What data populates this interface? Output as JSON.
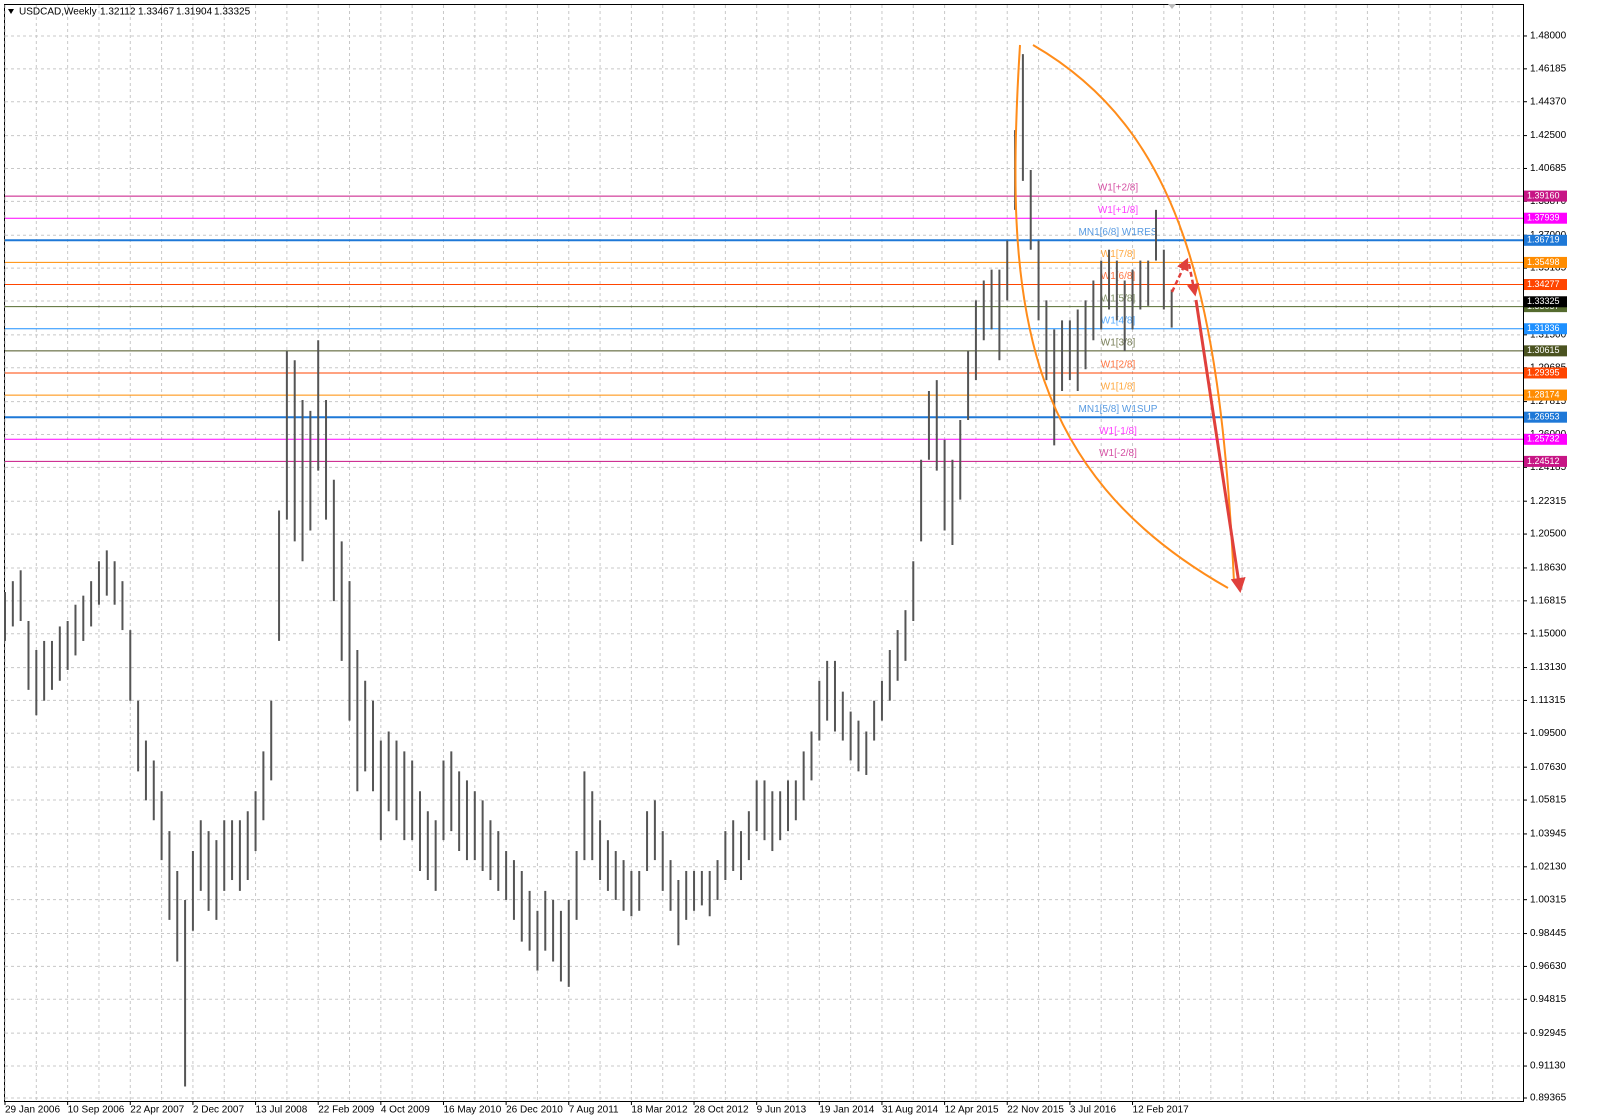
{
  "chart_data": {
    "type": "ohlc",
    "symbol": "USDCAD,Weekly",
    "header_values": [
      1.32112,
      1.33467,
      1.31904,
      1.33325
    ],
    "bar_color": "#555555",
    "grid": true,
    "ylim": [
      0.892,
      1.4971
    ],
    "yticks": [
      {
        "value": 1.48,
        "label": "1.48000"
      },
      1.46185,
      {
        "value": 1.4437,
        "label": "1.44370"
      },
      {
        "value": 1.425,
        "label": "1.42500"
      },
      1.40685,
      {
        "value": 1.3887,
        "label": "1.38870"
      },
      {
        "value": 1.37,
        "label": "1.37000"
      },
      1.35185,
      {
        "value": 1.3337,
        "label": "1.33370"
      },
      {
        "value": 1.315,
        "label": "1.31500"
      },
      1.29685,
      1.27815,
      {
        "value": 1.26,
        "label": "1.26000"
      },
      1.24185,
      1.22315,
      {
        "value": 1.205,
        "label": "1.20500"
      },
      {
        "value": 1.1863,
        "label": "1.18630"
      },
      1.16815,
      {
        "value": 1.15,
        "label": "1.15000"
      },
      {
        "value": 1.1313,
        "label": "1.13130"
      },
      1.11315,
      {
        "value": 1.095,
        "label": "1.09500"
      },
      {
        "value": 1.0763,
        "label": "1.07630"
      },
      1.05815,
      1.03945,
      {
        "value": 1.0213,
        "label": "1.02130"
      },
      1.00315,
      0.98445,
      {
        "value": 0.9663,
        "label": "0.96630"
      },
      0.94815,
      0.92945,
      {
        "value": 0.9113,
        "label": "0.91130"
      },
      0.89365
    ],
    "categories": [
      "29 Jan 2006",
      null,
      null,
      null,
      null,
      null,
      null,
      null,
      "10 Sep 2006",
      null,
      null,
      null,
      null,
      null,
      null,
      null,
      "22 Apr 2007",
      null,
      null,
      null,
      null,
      null,
      null,
      null,
      "2 Dec 2007",
      null,
      null,
      null,
      null,
      null,
      null,
      null,
      "13 Jul 2008",
      null,
      null,
      null,
      null,
      null,
      null,
      null,
      "22 Feb 2009",
      null,
      null,
      null,
      null,
      null,
      null,
      null,
      "4 Oct 2009",
      null,
      null,
      null,
      null,
      null,
      null,
      null,
      "16 May 2010",
      null,
      null,
      null,
      null,
      null,
      null,
      null,
      "26 Dec 2010",
      null,
      null,
      null,
      null,
      null,
      null,
      null,
      "7 Aug 2011",
      null,
      null,
      null,
      null,
      null,
      null,
      null,
      "18 Mar 2012",
      null,
      null,
      null,
      null,
      null,
      null,
      null,
      "28 Oct 2012",
      null,
      null,
      null,
      null,
      null,
      null,
      null,
      "9 Jun 2013",
      null,
      null,
      null,
      null,
      null,
      null,
      null,
      "19 Jan 2014",
      null,
      null,
      null,
      null,
      null,
      null,
      null,
      "31 Aug 2014",
      null,
      null,
      null,
      null,
      null,
      null,
      null,
      "12 Apr 2015",
      null,
      null,
      null,
      null,
      null,
      null,
      null,
      "22 Nov 2015",
      null,
      null,
      null,
      null,
      null,
      null,
      null,
      "3 Jul 2016",
      null,
      null,
      null,
      null,
      null,
      null,
      null,
      "12 Feb 2017",
      null,
      null,
      null,
      null,
      null
    ],
    "high": [
      1.173,
      1.179,
      1.185,
      1.157,
      1.141,
      1.146,
      1.146,
      1.154,
      1.157,
      1.166,
      1.171,
      1.179,
      1.19,
      1.196,
      1.19,
      1.179,
      1.152,
      1.113,
      1.091,
      1.08,
      1.063,
      1.041,
      1.019,
      1.003,
      1.03,
      1.047,
      1.041,
      1.036,
      1.047,
      1.047,
      1.047,
      1.052,
      1.063,
      1.085,
      1.113,
      1.218,
      1.306,
      1.301,
      1.279,
      1.273,
      1.312,
      1.279,
      1.235,
      1.201,
      1.179,
      1.141,
      1.124,
      1.113,
      1.091,
      1.096,
      1.091,
      1.085,
      1.08,
      1.063,
      1.052,
      1.047,
      1.08,
      1.085,
      1.074,
      1.069,
      1.063,
      1.058,
      1.047,
      1.041,
      1.03,
      1.025,
      1.019,
      1.008,
      0.997,
      1.008,
      1.003,
      0.997,
      1.003,
      1.03,
      1.074,
      1.063,
      1.047,
      1.036,
      1.03,
      1.025,
      1.019,
      1.019,
      1.052,
      1.058,
      1.041,
      1.025,
      1.014,
      1.019,
      1.019,
      1.019,
      1.019,
      1.025,
      1.041,
      1.047,
      1.041,
      1.052,
      1.069,
      1.069,
      1.063,
      1.063,
      1.069,
      1.069,
      1.085,
      1.096,
      1.124,
      1.135,
      1.135,
      1.118,
      1.107,
      1.102,
      1.096,
      1.113,
      1.124,
      1.141,
      1.152,
      1.163,
      1.19,
      1.246,
      1.284,
      1.29,
      1.257,
      1.246,
      1.268,
      1.306,
      1.334,
      1.345,
      1.351,
      1.351,
      1.367,
      1.428,
      1.47,
      1.406,
      1.367,
      1.334,
      1.318,
      1.323,
      1.323,
      1.329,
      1.334,
      1.345,
      1.356,
      1.362,
      1.356,
      1.345,
      1.351,
      1.356,
      1.356,
      1.384,
      1.362,
      1.34
    ],
    "low": [
      1.146,
      1.154,
      1.157,
      1.119,
      1.105,
      1.113,
      1.119,
      1.124,
      1.13,
      1.138,
      1.146,
      1.154,
      1.166,
      1.171,
      1.166,
      1.152,
      1.113,
      1.074,
      1.058,
      1.047,
      1.025,
      0.992,
      0.969,
      0.9,
      0.986,
      1.008,
      0.997,
      0.992,
      1.008,
      1.014,
      1.008,
      1.014,
      1.03,
      1.047,
      1.069,
      1.146,
      1.213,
      1.201,
      1.19,
      1.207,
      1.24,
      1.213,
      1.168,
      1.135,
      1.102,
      1.063,
      1.074,
      1.063,
      1.036,
      1.052,
      1.047,
      1.036,
      1.036,
      1.019,
      1.014,
      1.008,
      1.036,
      1.041,
      1.03,
      1.025,
      1.025,
      1.019,
      1.014,
      1.008,
      1.003,
      0.992,
      0.98,
      0.975,
      0.964,
      0.975,
      0.969,
      0.958,
      0.955,
      0.992,
      1.025,
      1.025,
      1.014,
      1.008,
      1.003,
      0.997,
      0.994,
      0.997,
      1.019,
      1.025,
      1.008,
      0.997,
      0.978,
      0.992,
      0.997,
      1.0,
      0.994,
      1.003,
      1.014,
      1.019,
      1.014,
      1.025,
      1.041,
      1.036,
      1.03,
      1.036,
      1.041,
      1.047,
      1.058,
      1.069,
      1.091,
      1.102,
      1.096,
      1.091,
      1.08,
      1.074,
      1.072,
      1.091,
      1.102,
      1.113,
      1.124,
      1.135,
      1.157,
      1.201,
      1.246,
      1.24,
      1.207,
      1.199,
      1.224,
      1.268,
      1.29,
      1.312,
      1.318,
      1.301,
      1.334,
      1.384,
      1.4,
      1.362,
      1.323,
      1.29,
      1.254,
      1.284,
      1.29,
      1.284,
      1.296,
      1.312,
      1.318,
      1.329,
      1.323,
      1.306,
      1.318,
      1.329,
      1.331,
      1.356,
      1.329,
      1.319
    ],
    "levels": [
      {
        "name": "W1[+2/8]",
        "value": 1.3916,
        "value_label": "1.39160",
        "color": "#c71585"
      },
      {
        "name": "W1[+1/8]",
        "value": 1.37939,
        "value_label": "1.37939",
        "color": "#ff00ff"
      },
      {
        "name": "MN1[6/8] W1RES",
        "value": 1.36719,
        "value_label": "1.36719",
        "color": "#1e78d7"
      },
      {
        "name": "W1[7/8]",
        "value": 1.35498,
        "value_label": "1.35498",
        "color": "#ff8c00"
      },
      {
        "name": "W1[6/8]",
        "value": 1.34277,
        "value_label": "1.34277",
        "color": "#ff4500"
      },
      {
        "name": "W1[5/8]",
        "value": 1.33057,
        "value_label": "1.33057",
        "color": "#556b2f"
      },
      {
        "name": "W1[4/8]",
        "value": 1.31836,
        "value_label": "1.31836",
        "color": "#1e90ff"
      },
      {
        "name": "W1[3/8]",
        "value": 1.30615,
        "value_label": "1.30615",
        "color": "#4b5320"
      },
      {
        "name": "W1[2/8]",
        "value": 1.29395,
        "value_label": "1.29395",
        "color": "#ff4500"
      },
      {
        "name": "W1[1/8]",
        "value": 1.28174,
        "value_label": "1.28174",
        "color": "#ff8c00"
      },
      {
        "name": "MN1[5/8] W1SUP",
        "value": 1.26953,
        "value_label": "1.26953",
        "color": "#1e78d7"
      },
      {
        "name": "W1[-1/8]",
        "value": 1.25732,
        "value_label": "1.25732",
        "color": "#ff00ff"
      },
      {
        "name": "W1[-2/8]",
        "value": 1.24512,
        "value_label": "1.24512",
        "color": "#c71585"
      }
    ],
    "current_price": {
      "value": 1.33325,
      "label": "1.33325",
      "color": "#000000"
    }
  }
}
